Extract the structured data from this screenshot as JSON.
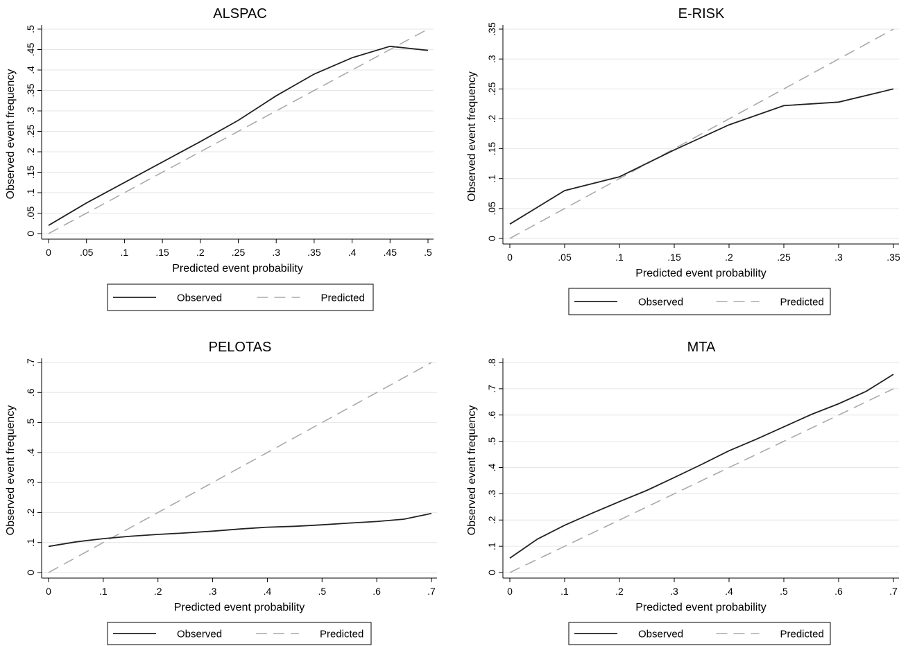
{
  "chart_data": [
    {
      "type": "line",
      "title": "ALSPAC",
      "xlabel": "Predicted event probability",
      "ylabel": "Observed event frequency",
      "xlim": [
        0,
        0.5
      ],
      "ylim": [
        0,
        0.5
      ],
      "x_ticks": [
        0,
        0.05,
        0.1,
        0.15,
        0.2,
        0.25,
        0.3,
        0.35,
        0.4,
        0.45,
        0.5
      ],
      "x_tick_labels": [
        "0",
        ".05",
        ".1",
        ".15",
        ".2",
        ".25",
        ".3",
        ".35",
        ".4",
        ".45",
        ".5"
      ],
      "y_ticks": [
        0,
        0.05,
        0.1,
        0.15,
        0.2,
        0.25,
        0.3,
        0.35,
        0.4,
        0.45,
        0.5
      ],
      "y_tick_labels": [
        "0",
        ".05",
        ".1",
        ".15",
        ".2",
        ".25",
        ".3",
        ".35",
        ".4",
        ".45",
        ".5"
      ],
      "grid": true,
      "legend": "bottom",
      "series": [
        {
          "name": "Observed",
          "style": "solid",
          "color": "#222222",
          "x": [
            0,
            0.05,
            0.1,
            0.15,
            0.2,
            0.25,
            0.3,
            0.35,
            0.4,
            0.45,
            0.5
          ],
          "y": [
            0.02,
            0.075,
            0.125,
            0.175,
            0.225,
            0.277,
            0.337,
            0.39,
            0.43,
            0.458,
            0.448
          ]
        },
        {
          "name": "Predicted",
          "style": "dashed",
          "color": "#aaaaaa",
          "x": [
            0,
            0.5
          ],
          "y": [
            0,
            0.5
          ]
        }
      ]
    },
    {
      "type": "line",
      "title": "E-RISK",
      "xlabel": "Predicted event probability",
      "ylabel": "Observed event frequency",
      "xlim": [
        0,
        0.35
      ],
      "ylim": [
        0,
        0.35
      ],
      "x_ticks": [
        0,
        0.05,
        0.1,
        0.15,
        0.2,
        0.25,
        0.3,
        0.35
      ],
      "x_tick_labels": [
        "0",
        ".05",
        ".1",
        ".15",
        ".2",
        ".25",
        ".3",
        ".35"
      ],
      "y_ticks": [
        0,
        0.05,
        0.1,
        0.15,
        0.2,
        0.25,
        0.3,
        0.35
      ],
      "y_tick_labels": [
        "0",
        ".05",
        ".1",
        ".15",
        ".2",
        ".25",
        ".3",
        ".35"
      ],
      "grid": true,
      "legend": "bottom",
      "series": [
        {
          "name": "Observed",
          "style": "solid",
          "color": "#222222",
          "x": [
            0,
            0.05,
            0.1,
            0.15,
            0.2,
            0.25,
            0.3,
            0.35
          ],
          "y": [
            0.024,
            0.08,
            0.103,
            0.148,
            0.19,
            0.222,
            0.228,
            0.25
          ]
        },
        {
          "name": "Predicted",
          "style": "dashed",
          "color": "#aaaaaa",
          "x": [
            0,
            0.35
          ],
          "y": [
            0,
            0.35
          ]
        }
      ]
    },
    {
      "type": "line",
      "title": "PELOTAS",
      "xlabel": "Predicted event probability",
      "ylabel": "Observed event frequency",
      "xlim": [
        0,
        0.7
      ],
      "ylim": [
        0,
        0.7
      ],
      "x_ticks": [
        0,
        0.1,
        0.2,
        0.3,
        0.4,
        0.5,
        0.6,
        0.7
      ],
      "x_tick_labels": [
        "0",
        ".1",
        ".2",
        ".3",
        ".4",
        ".5",
        ".6",
        ".7"
      ],
      "y_ticks": [
        0,
        0.1,
        0.2,
        0.3,
        0.4,
        0.5,
        0.6,
        0.7
      ],
      "y_tick_labels": [
        "0",
        ".1",
        ".2",
        ".3",
        ".4",
        ".5",
        ".6",
        ".7"
      ],
      "grid": true,
      "legend": "bottom",
      "series": [
        {
          "name": "Observed",
          "style": "solid",
          "color": "#222222",
          "x": [
            0,
            0.05,
            0.1,
            0.15,
            0.2,
            0.25,
            0.3,
            0.35,
            0.4,
            0.45,
            0.5,
            0.55,
            0.6,
            0.65,
            0.7
          ],
          "y": [
            0.087,
            0.102,
            0.113,
            0.121,
            0.127,
            0.132,
            0.138,
            0.145,
            0.151,
            0.154,
            0.159,
            0.165,
            0.17,
            0.178,
            0.197
          ]
        },
        {
          "name": "Predicted",
          "style": "dashed",
          "color": "#aaaaaa",
          "x": [
            0,
            0.7
          ],
          "y": [
            0,
            0.7
          ]
        }
      ]
    },
    {
      "type": "line",
      "title": "MTA",
      "xlabel": "Predicted event probability",
      "ylabel": "Observed event frequency",
      "xlim": [
        0,
        0.7
      ],
      "ylim": [
        0,
        0.8
      ],
      "x_ticks": [
        0,
        0.1,
        0.2,
        0.3,
        0.4,
        0.5,
        0.6,
        0.7
      ],
      "x_tick_labels": [
        "0",
        ".1",
        ".2",
        ".3",
        ".4",
        ".5",
        ".6",
        ".7"
      ],
      "y_ticks": [
        0,
        0.1,
        0.2,
        0.3,
        0.4,
        0.5,
        0.6,
        0.7,
        0.8
      ],
      "y_tick_labels": [
        "0",
        ".1",
        ".2",
        ".3",
        ".4",
        ".5",
        ".6",
        ".7",
        ".8"
      ],
      "grid": true,
      "legend": "bottom",
      "series": [
        {
          "name": "Observed",
          "style": "solid",
          "color": "#222222",
          "x": [
            0,
            0.05,
            0.1,
            0.15,
            0.2,
            0.25,
            0.3,
            0.35,
            0.4,
            0.45,
            0.5,
            0.55,
            0.6,
            0.65,
            0.7
          ],
          "y": [
            0.055,
            0.127,
            0.18,
            0.226,
            0.27,
            0.313,
            0.362,
            0.412,
            0.464,
            0.508,
            0.555,
            0.602,
            0.643,
            0.69,
            0.755
          ]
        },
        {
          "name": "Predicted",
          "style": "dashed",
          "color": "#aaaaaa",
          "x": [
            0,
            0.7
          ],
          "y": [
            0,
            0.7
          ]
        }
      ]
    }
  ]
}
